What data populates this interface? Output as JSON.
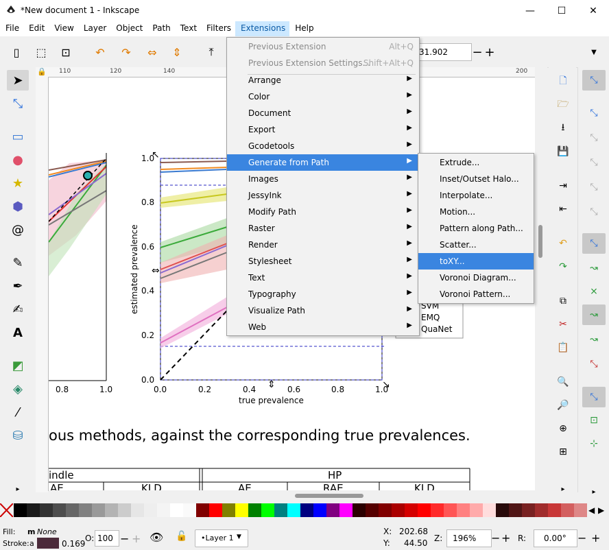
{
  "window": {
    "title": "*New document 1 - Inkscape",
    "minimize": "—",
    "maximize": "☐",
    "close": "✕"
  },
  "menubar": [
    "File",
    "Edit",
    "View",
    "Layer",
    "Object",
    "Path",
    "Text",
    "Filters",
    "Extensions",
    "Help"
  ],
  "toolbar": {
    "coord_value": "31.902",
    "minus": "−",
    "plus": "+"
  },
  "hruler_ticks": [
    "110",
    "120",
    "140",
    "200"
  ],
  "extensions_menu": {
    "items": [
      {
        "label": "Previous Extension",
        "accel": "Alt+Q",
        "disabled": true
      },
      {
        "label": "Previous Extension Settings...",
        "accel": "Shift+Alt+Q",
        "disabled": true
      },
      {
        "label": "Arrange",
        "submenu": true
      },
      {
        "label": "Color",
        "submenu": true
      },
      {
        "label": "Document",
        "submenu": true
      },
      {
        "label": "Export",
        "submenu": true
      },
      {
        "label": "Gcodetools",
        "submenu": true
      },
      {
        "label": "Generate from Path",
        "submenu": true,
        "highlighted": true
      },
      {
        "label": "Images",
        "submenu": true
      },
      {
        "label": "JessyInk",
        "submenu": true
      },
      {
        "label": "Modify Path",
        "submenu": true
      },
      {
        "label": "Raster",
        "submenu": true
      },
      {
        "label": "Render",
        "submenu": true
      },
      {
        "label": "Stylesheet",
        "submenu": true
      },
      {
        "label": "Text",
        "submenu": true
      },
      {
        "label": "Typography",
        "submenu": true
      },
      {
        "label": "Visualize Path",
        "submenu": true
      },
      {
        "label": "Web",
        "submenu": true
      }
    ]
  },
  "generate_submenu": [
    {
      "label": "Extrude..."
    },
    {
      "label": "Inset/Outset Halo..."
    },
    {
      "label": "Interpolate..."
    },
    {
      "label": "Motion..."
    },
    {
      "label": "Pattern along Path..."
    },
    {
      "label": "Scatter..."
    },
    {
      "label": "toXY...",
      "highlighted": true
    },
    {
      "label": "Voronoi Diagram..."
    },
    {
      "label": "Voronoi Pattern..."
    }
  ],
  "canvas": {
    "caption": "ous methods, against the corresponding true prevalences.",
    "ylabel": "estimated prevalence",
    "xlabel": "true prevalence",
    "yticks": [
      "1.0",
      "0.8",
      "0.6",
      "0.4",
      "0.2",
      "0.0"
    ],
    "xticks": [
      "0.0",
      "0.2",
      "0.4",
      "0.6",
      "0.8",
      "1.0"
    ],
    "left_xticks": [
      "0.8",
      "1.0"
    ],
    "legend": [
      "SVM",
      "EMQ",
      "QuaNet"
    ],
    "table_header_left": "indle",
    "table_header_right": "HP",
    "table_sub": [
      "AE",
      "KLD",
      "AE",
      "RAE",
      "KLD"
    ]
  },
  "status": {
    "fill_label": "Fill:",
    "fill_value": "None",
    "fill_m": "m",
    "stroke_label": "Stroke:",
    "stroke_a": "a",
    "stroke_width": "0.169",
    "opacity_label": "O:",
    "opacity": "100",
    "layer": "•Layer 1",
    "x_label": "X:",
    "x_value": "202.68",
    "y_label": "Y:",
    "y_value": "44.50",
    "zoom_label": "Z:",
    "zoom": "196%",
    "rot_label": "R:",
    "rotation": "0.00°"
  },
  "colors": {
    "menu_highlight": "#3a85e0",
    "active_menu": "#cce8ff"
  }
}
